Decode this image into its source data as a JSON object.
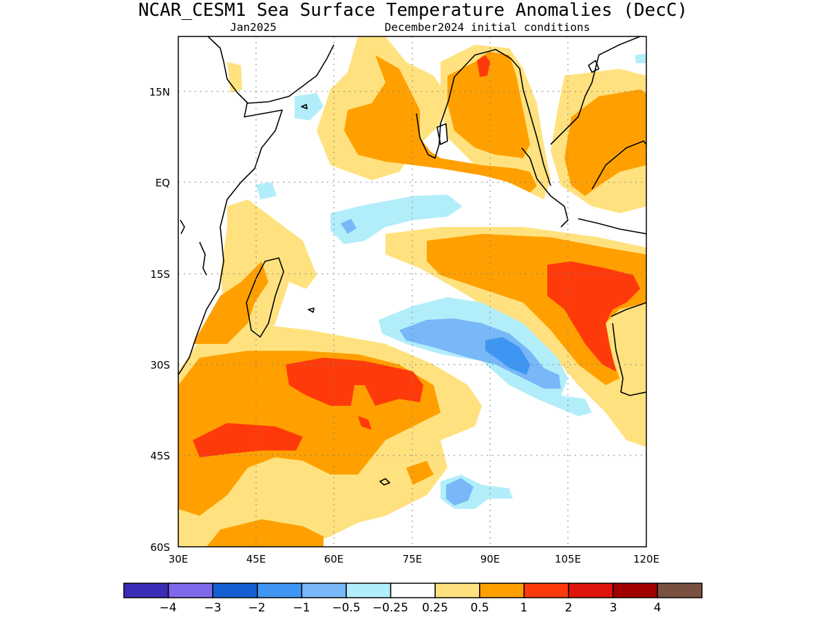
{
  "title": "NCAR_CESM1 Sea Surface Temperature Anomalies (DecC)",
  "subtitle_left": "Jan2025",
  "subtitle_right": "December2024 initial conditions",
  "map": {
    "lon_range": [
      30,
      120
    ],
    "lat_range": [
      -60,
      24
    ],
    "x_ticks": [
      "30E",
      "45E",
      "60E",
      "75E",
      "90E",
      "105E",
      "120E"
    ],
    "y_ticks": [
      "15N",
      "EQ",
      "15S",
      "30S",
      "45S",
      "60S"
    ]
  },
  "colorbar": {
    "colors": [
      "#3b2cb8",
      "#7f68ea",
      "#1460d2",
      "#3f96f2",
      "#78b8f8",
      "#b2eefa",
      "#ffffff",
      "#ffe27f",
      "#ffa000",
      "#ff3a0a",
      "#e0140a",
      "#a10000",
      "#7a5040"
    ],
    "labels": [
      "−4",
      "−3",
      "−2",
      "−1",
      "−0.5",
      "−0.25",
      "0.25",
      "0.5",
      "1",
      "2",
      "3",
      "4"
    ]
  },
  "legend_colors": {
    "lightblue": "#b2eefa",
    "blue": "#78b8f8",
    "midblue": "#3f96f2",
    "yellow": "#ffe27f",
    "orange": "#ffa000",
    "red": "#ff3a0a"
  }
}
